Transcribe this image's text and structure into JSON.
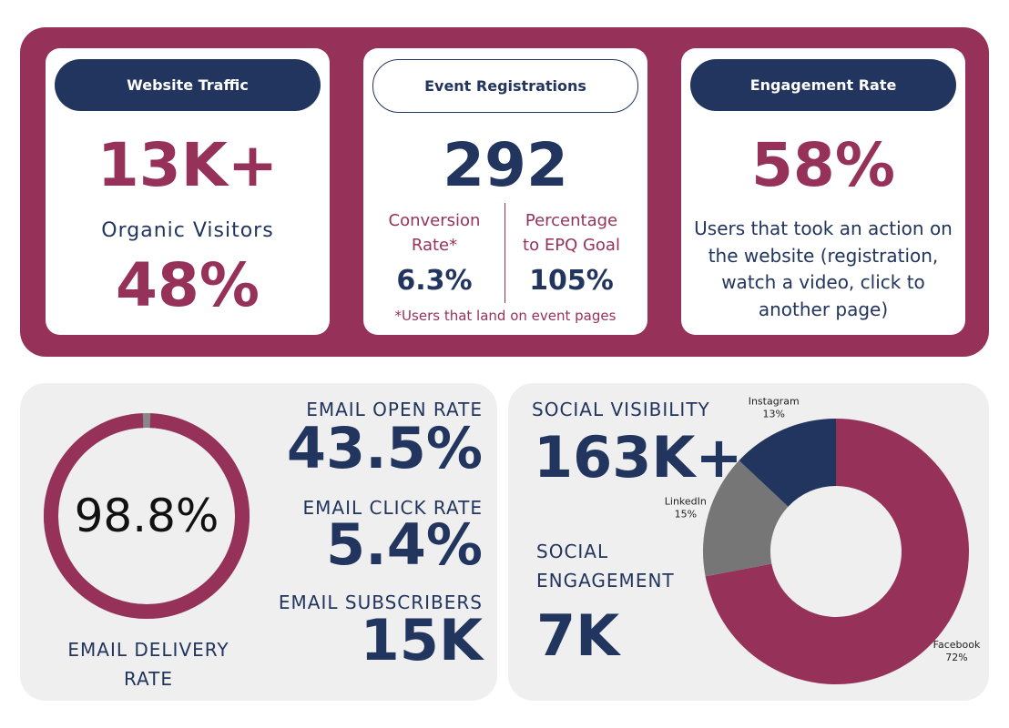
{
  "cards": [
    {
      "title": "Website Traffic",
      "stat": "13K+",
      "sub_label": "Organic Visitors",
      "sub_stat": "48%"
    },
    {
      "title": "Event Registrations",
      "stat": "292",
      "metrics": [
        {
          "label": "Conversion Rate*",
          "value": "6.3%"
        },
        {
          "label": "Percentage to EPQ Goal",
          "value": "105%"
        }
      ],
      "footnote": "*Users that land on event pages"
    },
    {
      "title": "Engagement Rate",
      "stat": "58%",
      "description": "Users that took an action on the website (registration, watch a video, click to another page)"
    }
  ],
  "email": {
    "delivery_rate": {
      "value": 98.8,
      "label": "98.8%"
    },
    "delivery_caption": "EMAIL DELIVERY RATE",
    "stats": [
      {
        "label": "EMAIL OPEN RATE",
        "value": "43.5%"
      },
      {
        "label": "EMAIL CLICK RATE",
        "value": "5.4%"
      },
      {
        "label": "EMAIL SUBSCRIBERS",
        "value": "15K"
      }
    ]
  },
  "social": {
    "visibility_label": "SOCIAL VISIBILITY",
    "visibility": "163K+",
    "engagement_label": "SOCIAL ENGAGEMENT",
    "engagement": "7K",
    "chart": {
      "type": "pie",
      "categories": [
        "Facebook",
        "LinkedIn",
        "Instagram"
      ],
      "values": [
        72,
        15,
        13
      ],
      "value_labels": [
        "72%",
        "15%",
        "13%"
      ],
      "colors": [
        "#96325a",
        "#767676",
        "#22355e"
      ]
    }
  }
}
